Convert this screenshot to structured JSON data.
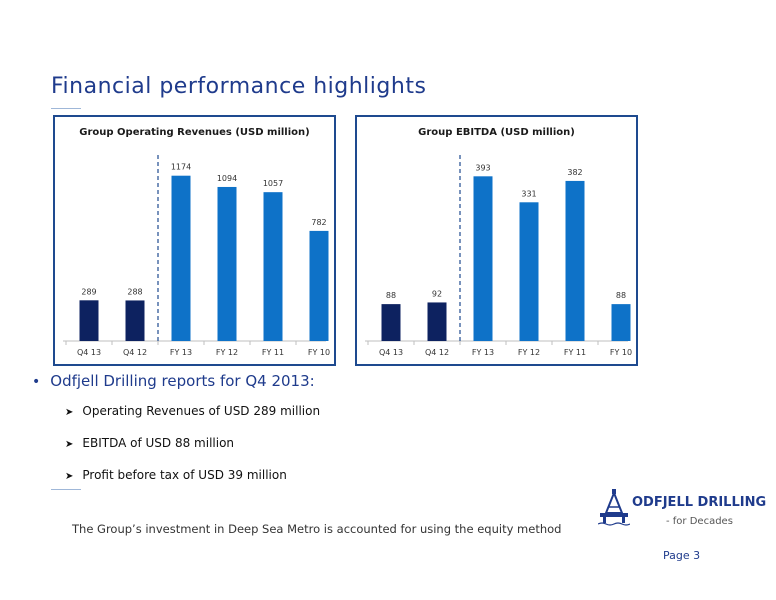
{
  "page": {
    "title": "Financial performance highlights",
    "bullet": "Odfjell Drilling reports for Q4 2013:",
    "sub_bullets": [
      "Operating Revenues of USD 289 million",
      "EBITDA of USD 88 million",
      "Profit before tax of USD 39 million"
    ],
    "footnote": "The Group’s investment in Deep Sea Metro is accounted for using the equity method",
    "page_number": "Page 3",
    "logo": {
      "brand": "ODFJELL DRILLING",
      "tagline": "- for Decades"
    }
  },
  "colors": {
    "quarter": "#0d2260",
    "annual": "#0e72c8",
    "title": "#1f3b8c",
    "divider": "#1e4a8f"
  },
  "chart_data": [
    {
      "type": "bar",
      "title": "Group Operating Revenues (USD million)",
      "categories": [
        "Q4 13",
        "Q4 12",
        "FY 13",
        "FY 12",
        "FY 11",
        "FY 10"
      ],
      "values": [
        289,
        288,
        1174,
        1094,
        1057,
        782
      ],
      "data_labels": [
        "289",
        "288",
        "1174",
        "1094",
        "1057",
        "782"
      ],
      "bar_colors": [
        "#0d2260",
        "#0d2260",
        "#0e72c8",
        "#0e72c8",
        "#0e72c8",
        "#0e72c8"
      ],
      "divider_after_index": 1,
      "ylim": [
        0,
        1250
      ],
      "grid": false
    },
    {
      "type": "bar",
      "title": "Group EBITDA (USD million)",
      "categories": [
        "Q4 13",
        "Q4 12",
        "FY 13",
        "FY 12",
        "FY 11",
        "FY 10"
      ],
      "values": [
        88,
        92,
        393,
        331,
        382,
        88
      ],
      "data_labels": [
        "88",
        "92",
        "393",
        "331",
        "382",
        "88"
      ],
      "bar_colors": [
        "#0d2260",
        "#0d2260",
        "#0e72c8",
        "#0e72c8",
        "#0e72c8",
        "#0e72c8"
      ],
      "divider_after_index": 1,
      "ylim": [
        0,
        420
      ],
      "grid": false
    }
  ]
}
